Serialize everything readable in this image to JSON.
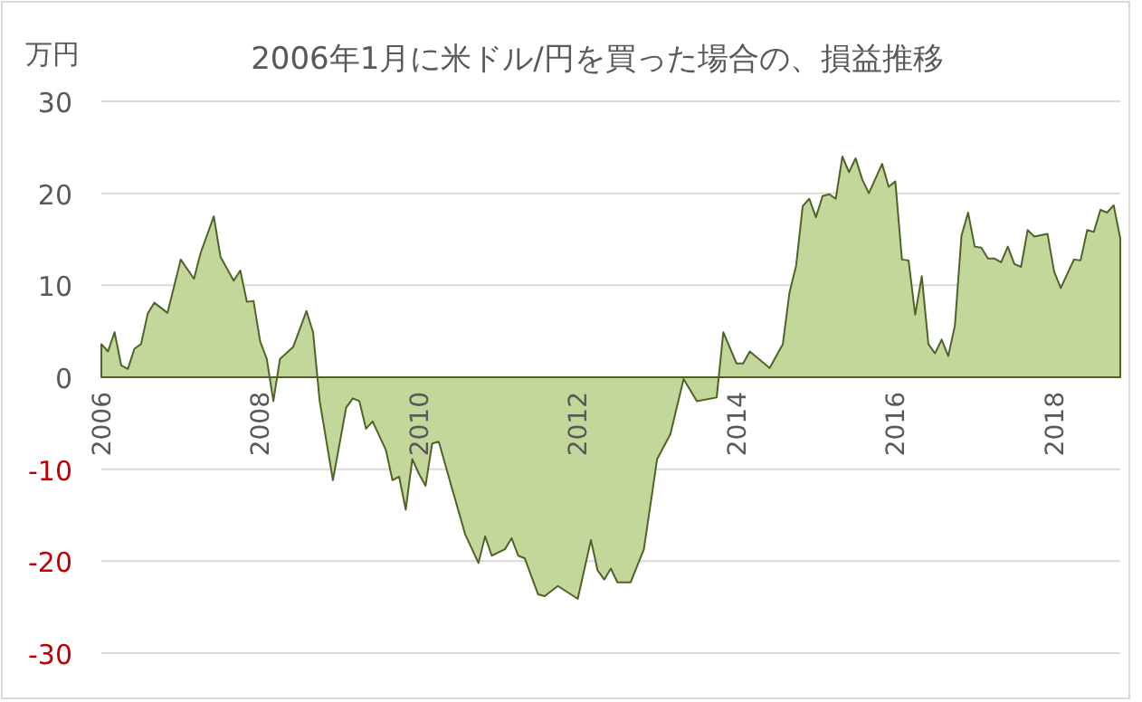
{
  "chart_data": {
    "type": "area",
    "title": "2006年1月に米ドル/円を買った場合の、損益推移",
    "ylabel": "万円",
    "x": [
      "2006-01",
      "2006-02",
      "2006-03",
      "2006-04",
      "2006-05",
      "2006-06",
      "2006-07",
      "2006-08",
      "2006-09",
      "2006-11",
      "2007-01",
      "2007-03",
      "2007-04",
      "2007-06",
      "2007-07",
      "2007-09",
      "2007-10",
      "2007-11",
      "2007-12",
      "2008-01",
      "2008-02",
      "2008-03",
      "2008-04",
      "2008-06",
      "2008-08",
      "2008-09",
      "2008-10",
      "2008-12",
      "2009-02",
      "2009-03",
      "2009-04",
      "2009-05",
      "2009-06",
      "2009-08",
      "2009-09",
      "2009-10",
      "2009-11",
      "2009-12",
      "2010-01",
      "2010-02",
      "2010-03",
      "2010-04",
      "2010-06",
      "2010-08",
      "2010-10",
      "2010-11",
      "2010-12",
      "2011-02",
      "2011-03",
      "2011-04",
      "2011-05",
      "2011-07",
      "2011-08",
      "2011-10",
      "2012-01",
      "2012-03",
      "2012-04",
      "2012-05",
      "2012-06",
      "2012-07",
      "2012-09",
      "2012-11",
      "2013-01",
      "2013-03",
      "2013-05",
      "2013-07",
      "2013-10",
      "2013-11",
      "2014-01",
      "2014-02",
      "2014-03",
      "2014-06",
      "2014-08",
      "2014-09",
      "2014-10",
      "2014-11",
      "2014-12",
      "2015-01",
      "2015-02",
      "2015-03",
      "2015-04",
      "2015-05",
      "2015-06",
      "2015-07",
      "2015-08",
      "2015-09",
      "2015-11",
      "2015-12",
      "2016-01",
      "2016-02",
      "2016-03",
      "2016-04",
      "2016-05",
      "2016-06",
      "2016-07",
      "2016-08",
      "2016-09",
      "2016-10",
      "2016-11",
      "2016-12",
      "2017-01",
      "2017-02",
      "2017-03",
      "2017-04",
      "2017-05",
      "2017-06",
      "2017-07",
      "2017-08",
      "2017-09",
      "2017-10",
      "2017-12",
      "2018-01",
      "2018-02",
      "2018-04",
      "2018-05",
      "2018-06",
      "2018-07",
      "2018-08",
      "2018-09",
      "2018-10",
      "2018-11"
    ],
    "series": [
      {
        "color": "#c4d79b",
        "values": [
          3.6,
          2.8,
          4.9,
          1.3,
          0.9,
          3.1,
          3.6,
          6.9,
          8.1,
          7.0,
          12.8,
          10.7,
          13.5,
          17.5,
          13.1,
          10.5,
          11.6,
          8.2,
          8.3,
          3.9,
          2.0,
          -2.6,
          2.0,
          3.3,
          7.2,
          4.9,
          -2.6,
          -11.2,
          -3.3,
          -2.3,
          -2.6,
          -5.6,
          -4.8,
          -7.9,
          -11.2,
          -10.8,
          -14.4,
          -8.9,
          -10.5,
          -11.8,
          -7.2,
          -7.0,
          -12.1,
          -17.1,
          -20.2,
          -17.3,
          -19.4,
          -18.7,
          -17.5,
          -19.4,
          -19.7,
          -23.6,
          -23.8,
          -22.7,
          -24.1,
          -17.7,
          -21.0,
          -22.0,
          -20.8,
          -22.3,
          -22.3,
          -18.7,
          -8.9,
          -6.2,
          -0.2,
          -2.6,
          -2.2,
          4.9,
          1.5,
          1.5,
          2.8,
          1.0,
          3.6,
          9.2,
          12.1,
          18.6,
          19.4,
          17.4,
          19.7,
          19.9,
          19.4,
          24.0,
          22.3,
          23.8,
          21.5,
          20.0,
          23.2,
          20.7,
          21.3,
          12.8,
          12.7,
          6.8,
          11.0,
          3.6,
          2.6,
          4.1,
          2.3,
          5.6,
          15.4,
          17.9,
          14.2,
          14.1,
          12.9,
          12.9,
          12.5,
          14.2,
          12.3,
          12.0,
          16.0,
          15.3,
          15.6,
          11.5,
          9.7,
          12.8,
          12.7,
          16.0,
          15.8,
          18.2,
          17.9,
          18.7,
          15.1
        ]
      }
    ],
    "xlim": [
      "2006-01",
      "2018-11"
    ],
    "xticks": [
      {
        "value": "2006-01",
        "label": "2006"
      },
      {
        "value": "2008-01",
        "label": "2008"
      },
      {
        "value": "2010-01",
        "label": "2010"
      },
      {
        "value": "2012-01",
        "label": "2012"
      },
      {
        "value": "2014-01",
        "label": "2014"
      },
      {
        "value": "2016-01",
        "label": "2016"
      },
      {
        "value": "2018-01",
        "label": "2018"
      }
    ],
    "ylim": [
      -30,
      30
    ],
    "yticks": [
      -30,
      -20,
      -10,
      0,
      10,
      20,
      30
    ],
    "grid": "y"
  }
}
